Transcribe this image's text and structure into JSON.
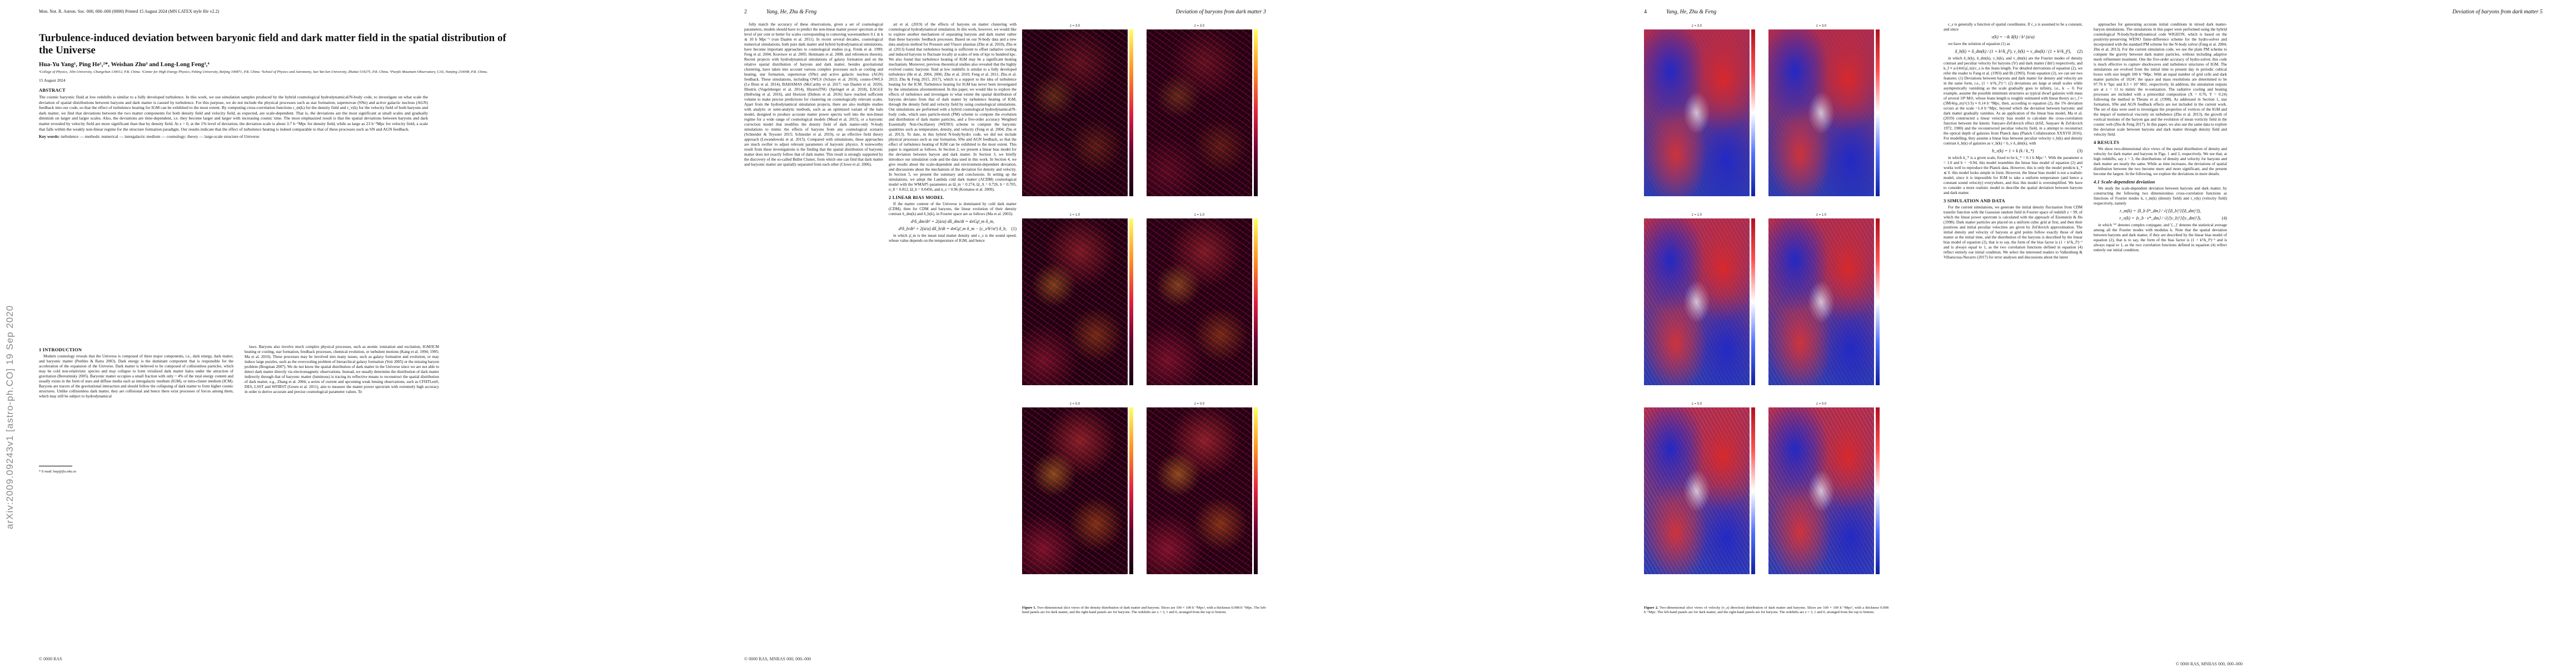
{
  "arxiv_stamp": "arXiv:2009.09243v1  [astro-ph.CO]  19 Sep 2020",
  "page1": {
    "header_left": "Mon. Not. R. Astron. Soc. 000, 000–000 (0000)      Printed 15 August 2024      (MN LATEX style file v2.2)",
    "title": "Turbulence-induced deviation between baryonic field and dark matter field in the spatial distribution of the Universe",
    "authors": "Hua-Yu Yang¹, Ping He¹,²*, Weishan Zhu³ and Long-Long Feng³,⁴",
    "affiliations": "¹College of Physics, Jilin University, Changchun 130012, P.R. China. ²Center for High Energy Physics, Peking University, Beijing 100871, P.R. China. ³School of Physics and Astronomy, Sun Yat-Sen University, Zhuhai 519275, P.R. China. ⁴Purple Mountain Observatory, CAS, Nanjing 210008, P.R. China.",
    "date": "15 August 2024",
    "abstract_heading": "ABSTRACT",
    "abstract": "The cosmic baryonic fluid at low redshifts is similar to a fully developed turbulence. In this work, we use simulation samples produced by the hybrid cosmological hydrodynamical/N-body code, to investigate on what scale the deviation of spatial distributions between baryons and dark matter is caused by turbulence. For this purpose, we do not include the physical processes such as star formation, supernovae (SNe) and active galactic nucleus (AGN) feedback into our code, so that the effect of turbulence heating for IGM can be exhibited to the most extent. By computing cross-correlation functions r_m(k) for the density field and r_v(k) for the velocity field of both baryons and dark matter, we find that deviations between the two matter components for both density field and velocity field, as expected, are scale-dependent. That is, the deviations are the most significant at small scales and gradually diminish on larger and larger scales. Also, the deviations are time-dependent, i.e. they become larger and larger with increasing cosmic time. The most emphasized result is that the spatial deviations between baryons and dark matter revealed by velocity field are more significant than that by density field. At z = 0, at the 1% level of deviation, the deviation scale is about 3.7 h⁻¹Mpc for density field, while as large as 23 h⁻¹Mpc for velocity field, a scale that falls within the weakly non-linear regime for the structure formation paradigm. Our results indicate that the effect of turbulence heating is indeed comparable to that of these processes such as SN and AGN feedback.",
    "keywords_label": "Key words:",
    "keywords": "turbulence — methods: numerical — intergalactic medium — cosmology: theory — large-scale structure of Universe",
    "sec1_heading": "1   INTRODUCTION",
    "intro_left": "Modern cosmology reveals that the Universe is composed of three major components, i.e., dark energy, dark matter, and baryonic matter (Peebles & Ratra 2003). Dark energy is the dominant component that is responsible for the acceleration of the expansion of the Universe. Dark matter is believed to be composed of collisionless particles, which may be cold non-relativistic species and may collapse to form virialized dark matter halos under the attraction of gravitation (Berestinsky 2005). Baryonic matter occupies a small fraction with only ~ 4% of the total energy content and usually exists in the form of stars and diffuse media such as intergalactic medium (IGM), or intra-cluster medium (ICM). Baryons are tracers of the gravitational interaction and should follow the collapsing of dark matter to form higher cosmic structures. Unlike collisionless dark matter, they are collisional and hence there exist processes of forces among them, which may still be subject to hydrodynamical",
    "intro_right": "laws. Baryons also involve much complex physical processes, such as atomic ionization and excitation, IGM/ICM heating or cooling, star formation, feedback processes, chemical evolution, or turbulent motions (Kang et al. 1994; 1995; Ma et al. 2010). These processes may be involved into many issues, such as galaxy formation and evolution, or may induce large puzzles, such as the overcooling problem of hierarchical galaxy formation (Voit 2005) or the missing baryon problem (Bregman 2007). We do not know the spatial distribution of dark matter in the Universe since we are not able to detect dark matter directly via electromagnetic observations. Instead, we usually determine the distribution of dark matter indirectly through that of baryons: matter (luminous) is tracing its reflective means to reconstruct the spatial distribution of dark matter, e.g., Zhang et al. 2004; a series of current and upcoming weak lensing observations, such as CFHTLenS, DES, LSST and WFIRST (Green et al. 2011), aim to measure the matter power spectrum with extremely high accuracy in order to derive accurate and precise cosmological parameter values. To",
    "footnote": "* E-mail: hep@jlu.edu.cn",
    "footer_left": "© 0000 RAS"
  },
  "page2": {
    "header_left": "2",
    "header_center": "Yang, He, Zhu & Feng",
    "left_col": "fully match the accuracy of these observations, given a set of cosmological parameters, models should have to predict the non-linear matter power spectrum at the level of per cent or better for scales corresponding to comoving wavenumbers 0.1 ≲ k ≲ 10 h Mpc⁻¹ (van Daalen et al. 2011). In recent several decades, cosmological numerical simulations, both pure dark matter and hybrid hydrodynamical simulations, have become important approaches to cosmological studies (e.g. Frenk et al. 1999; Feng et al. 2004; Kravtsov et al. 2005; Heitmann et al. 2008, and references therein). Recent projects with hydrodynamical simulations of galaxy formation and on the relative spatial distribution of baryons and dark matter, besides gravitational clustering, have taken into account various complex processes such as cooling and heating, star formation, supernovae (SNe) and active galactic nucleus (AGN) feedback. These simulations, including OWLS (Schaye et al. 2010), cosmo-OWLS (Le Brun et al. 2014), BAHAMAS (McCarthy et al. 2017; van Daalen et al. 2020), Illustris (Vogelsberger et al. 2014), IllustrisTNG (Springel et al. 2018), EAGLE (Hellwing et al. 2016), and Horizon (Dubois et al. 2016) have reached sufficient volume to make precise predictions for clustering on cosmologically relevant scales. Apart from the hydrodynamical simulation projects, there are also multiple studies with analytic or semi-analytic methods, such as an optimized variant of the halo model, designed to produce accurate matter power spectra well into the non-linear regime for a wide range of cosmological models (Mead et al. 2015), or a baryonic correction model that modifies the density field of dark matter-only N-body simulations to mimic the effects of baryons from any cosmological scenario (Schneider & Teyssier 2015; Schneider et al. 2019), or an effective field theory approach (Lewandowski et al. 2015). Compared with simulations, these approaches are much swifter to adjust relevant parameters of baryonic physics. A noteworthy result from these investigations is the finding that the spatial distribution of baryonic matter does not exactly follow that of dark matter. This result is strongly supported by the discovery of the so-called Bullet Cluster, from which one can find that dark matter and baryonic matter are spatially separated from each other (Clowe et al. 2006).",
    "mid_col": "ari et al. (2019) of the effects of baryons on matter clustering with cosmological hydrodynamical simulation. In this work, however, we would like to explore another mechanism of separating baryons and dark matter rather than these baryonic feedback processes. Based on our N-body data and a new data analysis method for Pressure and Vlasov plasmas (Zhu et al. 2010), Zhu et al. (2013) found that turbulence heating is sufficient to offset radiative cooling and induced baryons to fluctuate locally at scales of tens of kpc to hundred kpc. We also found that turbulence heating of IGM may be a significant heating mechanism. Moreover, previous theoretical studies also revealed that the highly evolved cosmic baryonic fluid at low redshifts is similar to a fully developed turbulence (He et al. 2004, 2006; Zhu et al. 2010; Feng et al. 2011; Zhu et al. 2013; Zhu & Feng 2015, 2017), which is a support to the idea of turbulence heating for the ICM. Turbulence heating for IGM has never been investigated by the simulations aforementioned. In this paper, we would like to explore the effects of turbulence and investigate to what extent the spatial distribution of baryons deviates from that of dark matter by turbulence heating of IGM, through the density field and velocity field by using cosmological simulations. Our simulations are performed with a hybrid cosmological hydrodynamical/N-body code, which uses particle-mesh (PM) scheme to compute the evolution and distribution of dark matter particles, and a five-order accuracy Weighted Essentially Non-Oscillatory (WENO) scheme to compute the baryonic quantities such as temperature, density, and velocity (Feng et al. 2004; Zhu et al. 2013). To date, in this hybrid N-body/hydro code, we did not include physical processes such as star formation, SNe and AGN feedback, so that the effect of turbulence heating of IGM can be exhibited to the most extent. This paper is organized as follows. In Section 2, we present a linear bias model for the deviation between baryon and dark matter. In Section 3, we briefly introduce our simulation code and the data used in this work. In Section 4, we give results about the scale-dependent and environment-dependent deviation, and discussions about the mechanism of the deviation for density and velocity. In Section 5, we present the summary and conclusions. In setting up the simulations, we adopt the Lambda cold dark matter (ΛCDM) cosmological model with the WMAP5 parameters as Ω_m = 0.274, Ω_Λ = 0.726, h = 0.705, σ_8 = 0.812, Ω_b = 0.0456, and n_s = 0.96 (Komatsu et al. 2009).",
    "sec2_heading": "2   LINEAR BIAS MODEL",
    "sec2_text": "If the matter content of the Universe is dominated by cold dark matter (CDM), then for CDM and baryons, the linear evolution of their density contrast δ_dm(k) and δ_b(k), in Fourier space are as follows (Ma et al. 2003):",
    "eq1a": "d²δ_dm/dt² + 2(ȧ/a) dδ_dm/dt = 4πGρ̄_m δ_m,",
    "eq1b": "d²δ_b/dt² + 2(ȧ/a) dδ_b/dt = 4πGρ̄_m δ_m − (c_s²k²/a²) δ_b,",
    "eq1_num": "(1)",
    "sec2_tail": "in which ρ̄_m is the mean total matter density and c_s is the sound speed, whose value depends on the temperature of IGM, and hence",
    "footer_left": "© 0000 RAS, MNRAS 000, 000–000",
    "fig1": {
      "rows": [
        {
          "label": "z = 3.0"
        },
        {
          "label": "z = 1.0"
        },
        {
          "label": "z = 0.0"
        }
      ],
      "cbar_ticks_left": [
        "10",
        "1",
        "0.1"
      ],
      "cbar_ticks_right": [
        "10",
        "1",
        "0.1"
      ],
      "caption_label": "Figure 1.",
      "caption": "Two-dimensional slice views of the density distribution of dark matter and baryons. Slices are 100 × 100 h⁻²Mpc², with a thickness 0.098 h⁻¹Mpc. The left-hand panels are for dark matter, and the right-hand panels are for baryons. The redshifts are z = 3, 1 and 0, arranged from the top to bottom."
    }
  },
  "page3": {
    "header_right": "Deviation of baryons from dark matter      3"
  },
  "page4": {
    "header_left": "4",
    "header_center": "Yang, He, Zhu & Feng",
    "fig2": {
      "rows": [
        {
          "label": "z = 3.0"
        },
        {
          "label": "z = 1.0"
        },
        {
          "label": "z = 0.0"
        }
      ],
      "cbar_ticks_top": "400",
      "cbar_ticks_mid": "0",
      "cbar_ticks_bot": "−400",
      "caption_label": "Figure 2.",
      "caption": "Two-dimensional slice views of velocity (v_z) direction) distribution of dark matter and baryons. Slices are 100 × 100 h⁻²Mpc², with a thickness 0.098 h⁻¹Mpc. The left-hand panels are for dark matter, and the right-hand panels are for baryons. The redshifts are z = 3, 1 and 0, arranged from the top to bottom."
    },
    "right_col_a": "c_s is generally a function of spatial coordinates. If c_s is assumed to be a constant, and since",
    "eq2a": "v(k) = −ik δ̇(k) / k²  (ȧ/a)",
    "eq2_text": "we have the solution of equation (1) as",
    "eq3": "δ_b(k) = δ_dm(k) / (1 + k²/k_f²),    v_b(k) = v_dm(k) / (1 + k²/k_f²),",
    "eq3_num": "(2)",
    "right_col_b": "in which δ_b(k), δ_dm(k), v_b(k), and v_dm(k) are the Fourier modes of density contrast and peculiar velocity for baryons ('b') and dark matter ('dm') respectively, and k_f ≡ a√(4πGρ̄_m)/c_s is the Jeans length. For detailed derivations of equation (2), we refer the reader to Fang et al. (1993) and Bi (1993). From equation (2), we can see two features: (1) Deviations between baryons and dark matter for density and velocity are in the same form, i.e., (1 + k²/k_f²)⁻¹; (2) deviations are large at small scales while asymptotically vanishing as the scale gradually goes to infinity, i.e., k → 0. For example, assume the possible minimum structures as typical dwarf galaxies with mass of several 10⁸ M⊙, whose Jeans length is roughly estimated with linear theory as r_f ≈ (3M/4πρ_m)^(1/3) ≈ 0.14 h⁻¹Mpc, then, according to equation (2), the 1% deviation occurs at the scale ~1.4 h⁻¹Mpc, beyond which the deviation between baryonic and dark matter gradually vanishes. As an application of the linear bias model, Ma et al. (2019) constructed a linear velocity bias model to calculate the cross-correlation function between the kinetic Sunyaev-Zel'dovich effect (kSZ, Sunyaev & Zel'dovich 1972, 1980) and the reconstructed peculiar velocity field, in a attempt to reconstruct the optical depth of galaxies from Planck data (Planck Collaboration XXXVII 2016). For modelling, they assume a linear bias between peculiar velocity v_b(k) and density contrast δ_b(k) of galaxies as v_b(k) = b_v δ_dm(k), with",
    "eq4": "b_v(k) = 1 + k (k / k_*)",
    "eq4_num": "(3)",
    "right_col_c": "in which k_* is a given scale, fixed to be k_* = 0.1 h Mpc⁻¹. With the parameter α = 1.0 and b = −0.94, this model resembles the linear bias model of equation (2) and works well to reproduce the Planck data. However, this is only the model predicts k_* ≲ 0. this model looks simple in form. However, the linear bias model is not a realistic model, since it is impossible for IGM to take a uniform temperature (and hence a constant sound velocity) everywhere, and thus this model is oversimplified. We have to consider a more realistic model to describe the spatial deviation between baryons and dark matter.",
    "sec3_heading": "3   SIMULATION AND DATA",
    "sec3_text": "For the current simulations, we generate the initial density fluctuation from CDM transfer function with the Gaussian random field in Fourier space of redshift z = 99, of which the linear power spectrum is calculated with the approach of Eisenstein & Hu (1998). Dark matter particles are placed on a uniform cubic grid at first, and then their positions and initial peculiar velocities are given by Zel'dovich approximation. The initial density and velocity of baryons at grid points follow exactly those of dark matter at the initial time, and the distribution of the baryons is described by the linear bias model of equation (2), that is to say, the form of the bias factor is (1 + k²/k_f²)⁻¹ and is always equal to 1, as the two correlation functions defined in equation (4) reflect entirely our initial condition. We select the interested readers to Valkenburg & Villaescusa-Navarro (2017) for error analyses and discussions about the latest"
  },
  "page5": {
    "header_right": "Deviation of baryons from dark matter      5",
    "left_col": "approaches for generating accurate initial conditions in mixed dark matter-baryon simulations. The simulations in this paper were performed using the hybrid cosmological N-body/hydrodynamical code WIGEON, which is based on the positivity-preserving WENO finite-difference scheme for the hydro-solver and incorporated with the standard PM scheme for the N-body solver (Fang et al. 2004; Zhu et al. 2013). For the current simulation code, we use the plain PM scheme to compute the gravity between dark matter particles, without including adaptive mesh refinement treatment. One the five-order accuracy of hydro-solver, this code is much effective to capture shockwaves and turbulence structures of IGM. The simulations are evolved from the initial time to present day in periodic cubical boxes with size length 100 h⁻¹Mpc. With an equal number of grid cells and dark matter particles of 1024³, the space and mass resolutions are determined to be 97.76 h⁻¹kpc and 8.3 × 10⁷ M⊙, respectively. In addition, the simulation outputs are at z = 11 to mimic the re-ionization. The radiative cooling and heating processes are included with a primordial composition (X = 0.76, Y = 0.24) following the method in Theuns et al. (1998). As addressed in Section 1, star formation, SNe and AGN feedback effects are not included in the current work. The set of data were used to investigate the properties of vortices of the IGM and the impact of numerical viscosity on turbulence (Zhu et al. 2013), the growth of vortical motions of the baryon gas and the evolution of mean vorticity field in the cosmic web (Zhu & Feng 2017). In this paper, we also use the same data to explore the deviation scale between baryons and dark matter through density field and velocity field.",
    "sec4_heading": "4   RESULTS",
    "sec4_text": "We show two-dimensional slice views of the spatial distribution of density and velocity for dark matter and baryons in Figs. 1 and 2, respectively. We see that, at high redshifts, say z = 3, the distributions of density and velocity for baryons and dark matter are nearly the same. While as time increases, the deviations of spatial distribution between the two become more and more significant, and the present become the largest. In the following, we explore the deviations in more details.",
    "sec41_heading": "4.1   Scale-dependent deviation",
    "sec41_text": "We study the scale-dependent deviation between baryons and dark matter, by constructing the following two dimensionless cross-correlation functions as functions of Fourier modes k, r_m(k) (density field) and r_v(k) (velocity field) respectively, namely",
    "eq5a": "r_m(k) = ⟨δ_b δ*_dm⟩ / √(⟨|δ_b|²⟩⟨|δ_dm|²⟩),",
    "eq5b": "r_v(k) = ⟨v_b · v*_dm⟩ / √(⟨|v_b|²⟩⟨|v_dm|²⟩),",
    "eq5_num": "(4)",
    "sec41_tail": "in which '*' denotes complex conjugate, and '⟨...⟩' denotes the statistical average among all the Fourier modes with modulus k. Note that the spatial deviation between baryons and dark matter, if they are described by the linear bias model of equation (2), that is to say, the form of the bias factor is (1 + k²/k_f²)⁻¹ and is always equal to 1, as the two correlation functions defined in equation (4) reflect entirely our initial condition.",
    "footer_right": "© 0000 RAS, MNRAS 000, 000–000"
  }
}
